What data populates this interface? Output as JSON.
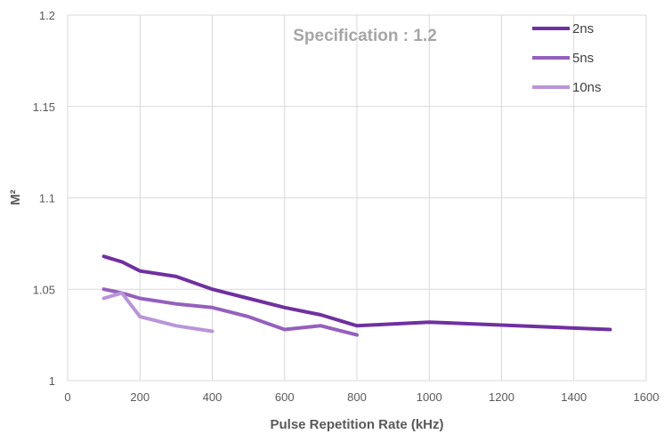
{
  "chart_data": {
    "type": "line",
    "title": "",
    "annotation": "Specification : 1.2",
    "xlabel": "Pulse Repetition Rate (kHz)",
    "ylabel": "M²",
    "xlim": [
      0,
      1600
    ],
    "ylim": [
      1,
      1.2
    ],
    "xticks": [
      0,
      200,
      400,
      600,
      800,
      1000,
      1200,
      1400,
      1600
    ],
    "yticks": [
      1,
      1.05,
      1.1,
      1.15,
      1.2
    ],
    "xtick_labels": [
      "0",
      "200",
      "400",
      "600",
      "800",
      "1000",
      "1200",
      "1400",
      "1600"
    ],
    "ytick_labels": [
      "1",
      "1.05",
      "1.1",
      "1.15",
      "1.2"
    ],
    "grid": true,
    "legend_position": "top-right",
    "series": [
      {
        "name": "2ns",
        "color": "#7030a0",
        "x": [
          100,
          150,
          200,
          300,
          400,
          500,
          600,
          700,
          800,
          1000,
          1500
        ],
        "y": [
          1.068,
          1.065,
          1.06,
          1.057,
          1.05,
          1.045,
          1.04,
          1.036,
          1.03,
          1.032,
          1.028
        ]
      },
      {
        "name": "5ns",
        "color": "#9460bd",
        "x": [
          100,
          150,
          200,
          300,
          400,
          500,
          600,
          700,
          800
        ],
        "y": [
          1.05,
          1.048,
          1.045,
          1.042,
          1.04,
          1.035,
          1.028,
          1.03,
          1.025
        ]
      },
      {
        "name": "10ns",
        "color": "#b895d9",
        "x": [
          100,
          150,
          200,
          300,
          400
        ],
        "y": [
          1.045,
          1.048,
          1.035,
          1.03,
          1.027
        ]
      }
    ]
  }
}
